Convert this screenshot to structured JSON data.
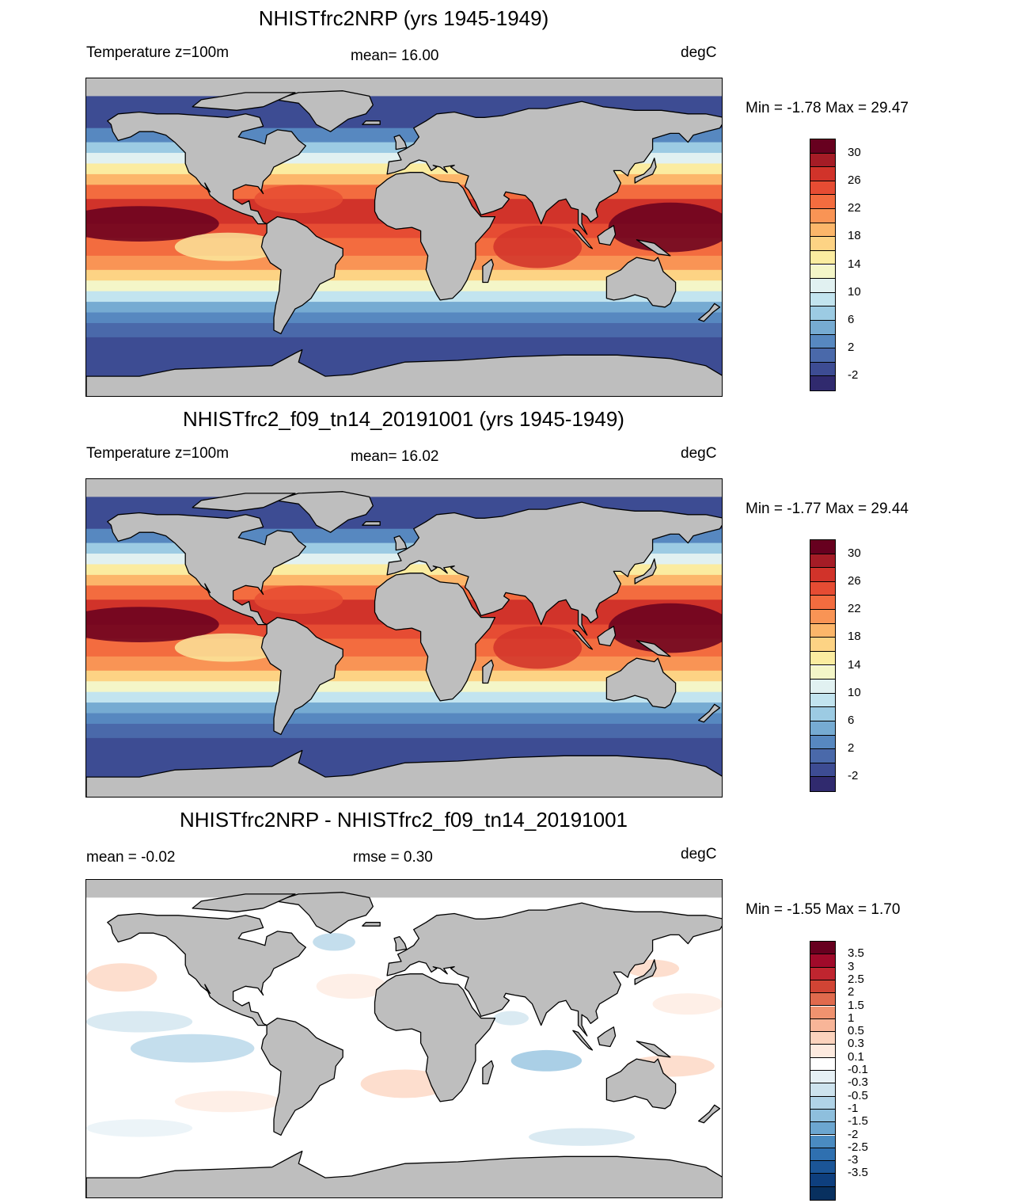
{
  "panels": [
    {
      "title": "NHISTfrc2NRP (yrs 1945-1949)",
      "left_label": "Temperature z=100m",
      "mid_label": "mean=  16.00",
      "units": "degC",
      "minmax": "Min =  -1.78 Max =  29.47",
      "field": "temperature"
    },
    {
      "title": "NHISTfrc2_f09_tn14_20191001 (yrs 1945-1949)",
      "left_label": "Temperature z=100m",
      "mid_label": "mean=  16.02",
      "units": "degC",
      "minmax": "Min =  -1.77 Max =  29.44",
      "field": "temperature"
    },
    {
      "title": "NHISTfrc2NRP - NHISTfrc2_f09_tn14_20191001",
      "left_label": "mean =  -0.02",
      "mid_label": "rmse =   0.30",
      "units": "degC",
      "minmax": "Min =  -1.55 Max =   1.70",
      "field": "difference"
    }
  ],
  "temp_colorbar": {
    "colors": [
      "#67001f",
      "#a51c26",
      "#d1332a",
      "#e64c33",
      "#f36c3f",
      "#f99455",
      "#fcb66a",
      "#fdd384",
      "#fbeca0",
      "#f4f6c8",
      "#e1f1f1",
      "#c2e4ef",
      "#9ccbe3",
      "#76abd2",
      "#5788c0",
      "#4a69aa",
      "#3d4c93",
      "#302a6e"
    ],
    "labels": [
      "30",
      "26",
      "22",
      "18",
      "14",
      "10",
      "6",
      "2",
      "-2"
    ]
  },
  "diff_colorbar": {
    "colors": [
      "#67001f",
      "#a00a2a",
      "#c0252f",
      "#d14434",
      "#e06a4d",
      "#f0926f",
      "#f8b598",
      "#fcd3bd",
      "#fdeadf",
      "#ffffff",
      "#e6f0f5",
      "#cde3ee",
      "#b0d3e7",
      "#8ebfdd",
      "#6ca6d0",
      "#4a8bc1",
      "#2f70b0",
      "#1b5597",
      "#0e3f7e",
      "#08305f"
    ],
    "labels": [
      "3.5",
      "3",
      "2.5",
      "2",
      "1.5",
      "1",
      "0.5",
      "0.3",
      "0.1",
      "-0.1",
      "-0.3",
      "-0.5",
      "-1",
      "-1.5",
      "-2",
      "-2.5",
      "-3",
      "-3.5"
    ]
  },
  "map_colors": {
    "land": "#bebebe",
    "coast": "#000000"
  }
}
